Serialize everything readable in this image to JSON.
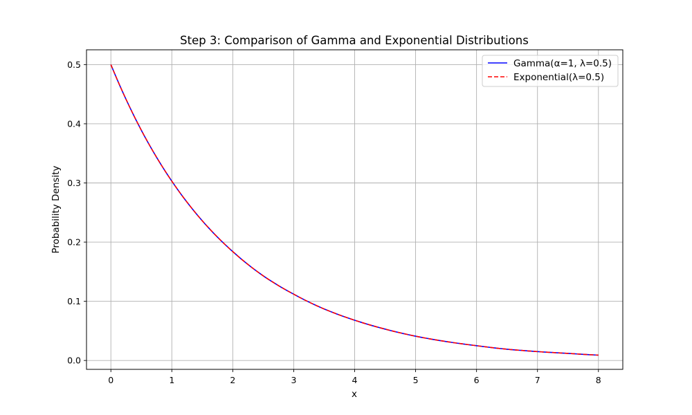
{
  "chart_data": {
    "type": "line",
    "title": "Step 3: Comparison of Gamma and Exponential Distributions",
    "xlabel": "x",
    "ylabel": "Probability Density",
    "xlim": [
      -0.4,
      8.4
    ],
    "ylim": [
      -0.015,
      0.525
    ],
    "xticks": [
      "0",
      "1",
      "2",
      "3",
      "4",
      "5",
      "6",
      "7",
      "8"
    ],
    "yticks": [
      "0.0",
      "0.1",
      "0.2",
      "0.3",
      "0.4",
      "0.5"
    ],
    "grid": true,
    "legend_position": "top-right",
    "x": [
      0,
      0.5,
      1,
      1.5,
      2,
      2.5,
      3,
      3.5,
      4,
      4.5,
      5,
      5.5,
      6,
      6.5,
      7,
      7.5,
      8
    ],
    "series": [
      {
        "name": "Gamma(α=1, λ=0.5)",
        "color": "#0000ff",
        "style": "solid",
        "values": [
          0.5,
          0.389,
          0.303,
          0.236,
          0.184,
          0.143,
          0.112,
          0.087,
          0.068,
          0.053,
          0.041,
          0.032,
          0.025,
          0.019,
          0.015,
          0.012,
          0.009
        ]
      },
      {
        "name": "Exponential(λ=0.5)",
        "color": "#ff0000",
        "style": "dashed",
        "values": [
          0.5,
          0.389,
          0.303,
          0.236,
          0.184,
          0.143,
          0.112,
          0.087,
          0.068,
          0.053,
          0.041,
          0.032,
          0.025,
          0.019,
          0.015,
          0.012,
          0.009
        ]
      }
    ]
  }
}
